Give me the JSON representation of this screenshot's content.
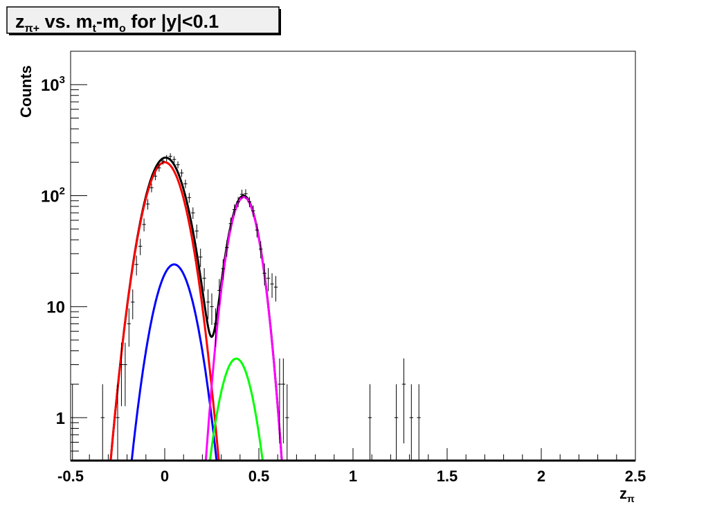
{
  "chart_data": {
    "type": "scatter",
    "title": {
      "main": "z",
      "sub": "π+",
      "mid": " vs. m",
      "sub2": "t",
      "mid2": "-m",
      "sub3": "o",
      "tail": " for |y|<0.1"
    },
    "xlabel": {
      "main": "z",
      "sub": "π"
    },
    "ylabel": "Counts",
    "xlim": [
      -0.5,
      2.5
    ],
    "ylim": [
      0.41,
      2000
    ],
    "ylog": true,
    "grid": false,
    "x_ticks": [
      "-0.5",
      "0",
      "0.5",
      "1",
      "1.5",
      "2",
      "2.5"
    ],
    "x_tick_values": [
      -0.5,
      0,
      0.5,
      1,
      1.5,
      2,
      2.5
    ],
    "y_ticks": [
      {
        "value": 1,
        "base": "1",
        "exp": ""
      },
      {
        "value": 10,
        "base": "10",
        "exp": ""
      },
      {
        "value": 100,
        "base": "10",
        "exp": "2"
      },
      {
        "value": 1000,
        "base": "10",
        "exp": "3"
      }
    ],
    "bin_width": 0.02,
    "points": [
      [
        -0.49,
        1
      ],
      [
        -0.33,
        1
      ],
      [
        -0.25,
        1
      ],
      [
        -0.23,
        3
      ],
      [
        -0.21,
        3
      ],
      [
        -0.19,
        7
      ],
      [
        -0.17,
        11
      ],
      [
        -0.15,
        24
      ],
      [
        -0.13,
        35
      ],
      [
        -0.11,
        55
      ],
      [
        -0.09,
        84
      ],
      [
        -0.07,
        118
      ],
      [
        -0.05,
        150
      ],
      [
        -0.03,
        178
      ],
      [
        -0.01,
        205
      ],
      [
        0.01,
        218
      ],
      [
        0.03,
        226
      ],
      [
        0.05,
        212
      ],
      [
        0.07,
        190
      ],
      [
        0.09,
        160
      ],
      [
        0.11,
        128
      ],
      [
        0.13,
        96
      ],
      [
        0.15,
        70
      ],
      [
        0.17,
        48
      ],
      [
        0.19,
        28
      ],
      [
        0.21,
        18
      ],
      [
        0.23,
        11
      ],
      [
        0.25,
        10
      ],
      [
        0.27,
        7
      ],
      [
        0.29,
        14
      ],
      [
        0.31,
        22
      ],
      [
        0.33,
        34
      ],
      [
        0.35,
        56
      ],
      [
        0.37,
        75
      ],
      [
        0.39,
        88
      ],
      [
        0.41,
        103
      ],
      [
        0.43,
        104
      ],
      [
        0.45,
        88
      ],
      [
        0.47,
        73
      ],
      [
        0.49,
        49
      ],
      [
        0.51,
        33
      ],
      [
        0.53,
        20
      ],
      [
        0.55,
        18
      ],
      [
        0.57,
        16
      ],
      [
        0.59,
        15
      ],
      [
        0.61,
        2
      ],
      [
        0.63,
        2
      ],
      [
        0.65,
        1
      ],
      [
        1.09,
        1
      ],
      [
        1.23,
        1
      ],
      [
        1.27,
        2
      ],
      [
        1.31,
        1
      ],
      [
        1.35,
        1
      ]
    ],
    "fits": [
      {
        "color": "#ff0000",
        "amplitude": 200,
        "mean": 0.0,
        "sigma": 0.0816
      },
      {
        "color": "#0000ff",
        "amplitude": 24,
        "mean": 0.05,
        "sigma": 0.079
      },
      {
        "color": "#ff00ff",
        "amplitude": 97,
        "mean": 0.42,
        "sigma": 0.061
      },
      {
        "color": "#00ff00",
        "amplitude": 3.4,
        "mean": 0.38,
        "sigma": 0.068
      },
      {
        "color": "#000000",
        "sum_of_components": true
      }
    ]
  }
}
